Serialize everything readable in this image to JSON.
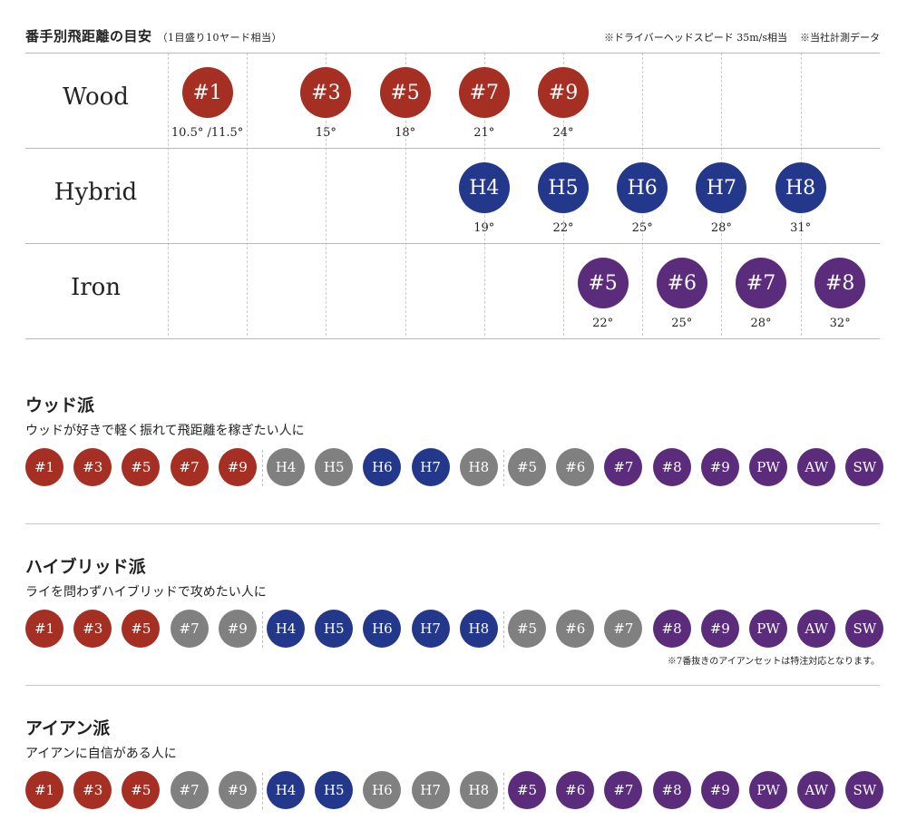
{
  "header": {
    "title": "番手別飛距離の目安",
    "subtitle": "（1目盛り10ヤード相当）",
    "notes": [
      "※ドライバーヘッドスピード 35m/s相当",
      "※当社計測データ"
    ]
  },
  "colors": {
    "wood": "#a42f22",
    "hybrid": "#24388b",
    "iron": "#5b2c7b",
    "gray": "#808080"
  },
  "distance_chart": {
    "rows": [
      {
        "label": "Wood",
        "clubs": [
          {
            "name": "#1",
            "loft": "10.5° /11.5°",
            "col": 0.5
          },
          {
            "name": "#3",
            "loft": "15°",
            "col": 2
          },
          {
            "name": "#5",
            "loft": "18°",
            "col": 3
          },
          {
            "name": "#7",
            "loft": "21°",
            "col": 4
          },
          {
            "name": "#9",
            "loft": "24°",
            "col": 5
          }
        ]
      },
      {
        "label": "Hybrid",
        "clubs": [
          {
            "name": "H4",
            "loft": "19°",
            "col": 4
          },
          {
            "name": "H5",
            "loft": "22°",
            "col": 5
          },
          {
            "name": "H6",
            "loft": "25°",
            "col": 6
          },
          {
            "name": "H7",
            "loft": "28°",
            "col": 7
          },
          {
            "name": "H8",
            "loft": "31°",
            "col": 8
          }
        ]
      },
      {
        "label": "Iron",
        "clubs": [
          {
            "name": "#5",
            "loft": "22°",
            "col": 5.5
          },
          {
            "name": "#6",
            "loft": "25°",
            "col": 6.5
          },
          {
            "name": "#7",
            "loft": "28°",
            "col": 7.5
          },
          {
            "name": "#8",
            "loft": "32°",
            "col": 8.5
          }
        ]
      }
    ]
  },
  "sets": [
    {
      "title": "ウッド派",
      "description": "ウッドが好きで軽く振れて飛距離を稼ぎたい人に",
      "note": "",
      "separators": [
        5,
        10
      ],
      "chips": [
        {
          "label": "#1",
          "color": "wood"
        },
        {
          "label": "#3",
          "color": "wood"
        },
        {
          "label": "#5",
          "color": "wood"
        },
        {
          "label": "#7",
          "color": "wood"
        },
        {
          "label": "#9",
          "color": "wood"
        },
        {
          "label": "H4",
          "color": "gray"
        },
        {
          "label": "H5",
          "color": "gray"
        },
        {
          "label": "H6",
          "color": "hybrid"
        },
        {
          "label": "H7",
          "color": "hybrid"
        },
        {
          "label": "H8",
          "color": "gray"
        },
        {
          "label": "#5",
          "color": "gray"
        },
        {
          "label": "#6",
          "color": "gray"
        },
        {
          "label": "#7",
          "color": "iron"
        },
        {
          "label": "#8",
          "color": "iron"
        },
        {
          "label": "#9",
          "color": "iron"
        },
        {
          "label": "PW",
          "color": "iron"
        },
        {
          "label": "AW",
          "color": "iron"
        },
        {
          "label": "SW",
          "color": "iron"
        }
      ]
    },
    {
      "title": "ハイブリッド派",
      "description": "ライを問わずハイブリッドで攻めたい人に",
      "note": "※7番抜きのアイアンセットは特注対応となります。",
      "separators": [
        5,
        10
      ],
      "chips": [
        {
          "label": "#1",
          "color": "wood"
        },
        {
          "label": "#3",
          "color": "wood"
        },
        {
          "label": "#5",
          "color": "wood"
        },
        {
          "label": "#7",
          "color": "gray"
        },
        {
          "label": "#9",
          "color": "gray"
        },
        {
          "label": "H4",
          "color": "hybrid"
        },
        {
          "label": "H5",
          "color": "hybrid"
        },
        {
          "label": "H6",
          "color": "hybrid"
        },
        {
          "label": "H7",
          "color": "hybrid"
        },
        {
          "label": "H8",
          "color": "hybrid"
        },
        {
          "label": "#5",
          "color": "gray"
        },
        {
          "label": "#6",
          "color": "gray"
        },
        {
          "label": "#7",
          "color": "gray"
        },
        {
          "label": "#8",
          "color": "iron"
        },
        {
          "label": "#9",
          "color": "iron"
        },
        {
          "label": "PW",
          "color": "iron"
        },
        {
          "label": "AW",
          "color": "iron"
        },
        {
          "label": "SW",
          "color": "iron"
        }
      ]
    },
    {
      "title": "アイアン派",
      "description": "アイアンに自信がある人に",
      "note": "",
      "separators": [
        5,
        10
      ],
      "chips": [
        {
          "label": "#1",
          "color": "wood"
        },
        {
          "label": "#3",
          "color": "wood"
        },
        {
          "label": "#5",
          "color": "wood"
        },
        {
          "label": "#7",
          "color": "gray"
        },
        {
          "label": "#9",
          "color": "gray"
        },
        {
          "label": "H4",
          "color": "hybrid"
        },
        {
          "label": "H5",
          "color": "hybrid"
        },
        {
          "label": "H6",
          "color": "gray"
        },
        {
          "label": "H7",
          "color": "gray"
        },
        {
          "label": "H8",
          "color": "gray"
        },
        {
          "label": "#5",
          "color": "iron"
        },
        {
          "label": "#6",
          "color": "iron"
        },
        {
          "label": "#7",
          "color": "iron"
        },
        {
          "label": "#8",
          "color": "iron"
        },
        {
          "label": "#9",
          "color": "iron"
        },
        {
          "label": "PW",
          "color": "iron"
        },
        {
          "label": "AW",
          "color": "iron"
        },
        {
          "label": "SW",
          "color": "iron"
        }
      ]
    }
  ]
}
